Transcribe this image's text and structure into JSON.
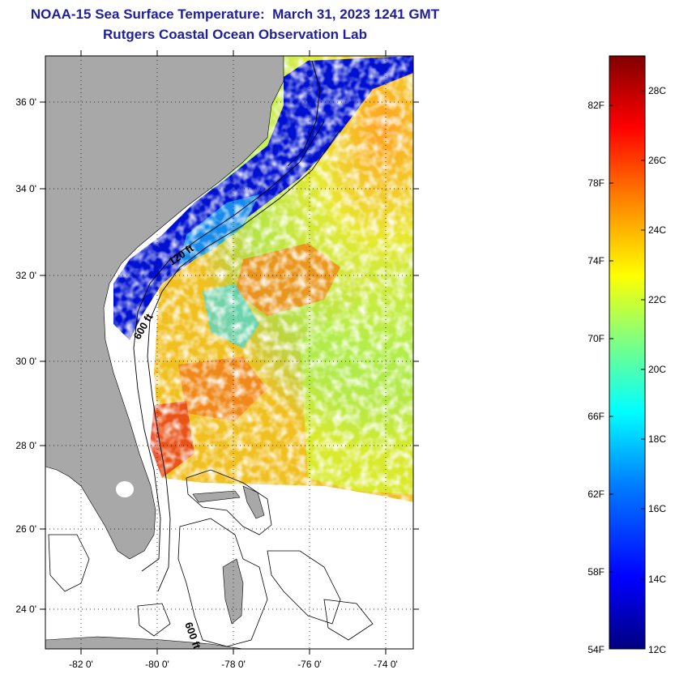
{
  "header": {
    "title": "NOAA-15 Sea Surface Temperature:  March 31, 2023 1241 GMT",
    "subtitle": "Rutgers Coastal Ocean Observation Lab"
  },
  "map": {
    "lat_labels": [
      "36 0'",
      "34 0'",
      "32 0'",
      "30 0'",
      "28 0'",
      "26 0'",
      "24 0'"
    ],
    "lon_labels": [
      "-82 0'",
      "-80 0'",
      "-78 0'",
      "-76 0'",
      "-74 0'"
    ],
    "contour_labels": [
      "120 ft",
      "600 ft",
      "600 ft"
    ],
    "colors": {
      "land": "#a8a8a8",
      "cloud": "#ffffff",
      "frame": "#000000"
    }
  },
  "colorbar": {
    "fahrenheit_labels": [
      "82F",
      "78F",
      "74F",
      "70F",
      "66F",
      "62F",
      "58F",
      "54F"
    ],
    "celsius_labels": [
      "28C",
      "26C",
      "24C",
      "22C",
      "20C",
      "18C",
      "16C",
      "14C",
      "12C"
    ],
    "colors": [
      "#000080",
      "#0000ff",
      "#0080ff",
      "#00ffff",
      "#80ff80",
      "#ffff00",
      "#ff8000",
      "#ff0000",
      "#800000"
    ]
  }
}
